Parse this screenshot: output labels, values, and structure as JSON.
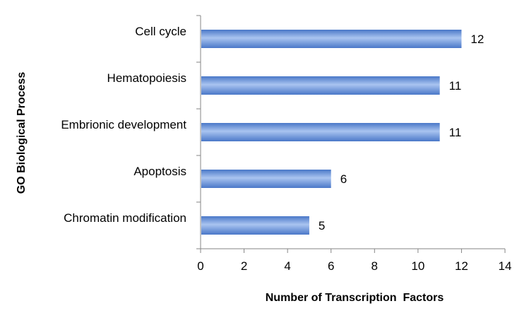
{
  "chart_data": {
    "type": "bar",
    "orientation": "horizontal",
    "categories": [
      "Cell cycle",
      "Hematopoiesis",
      "Embrionic development",
      "Apoptosis",
      "Chromatin modification"
    ],
    "values": [
      12,
      11,
      11,
      6,
      5
    ],
    "xlabel": "Number of Transcription  Factors",
    "ylabel": "GO Biological Process",
    "xlim": [
      0,
      14
    ],
    "xticks": [
      0,
      2,
      4,
      6,
      8,
      10,
      12,
      14
    ],
    "grid": false,
    "legend": "none",
    "data_labels": true,
    "colors": {
      "bar_light": "#a9c4f0",
      "bar_mid": "#6f9be0",
      "bar_dark": "#4a78c8",
      "axis": "#868686"
    }
  }
}
